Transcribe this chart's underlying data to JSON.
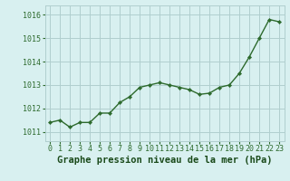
{
  "x": [
    0,
    1,
    2,
    3,
    4,
    5,
    6,
    7,
    8,
    9,
    10,
    11,
    12,
    13,
    14,
    15,
    16,
    17,
    18,
    19,
    20,
    21,
    22,
    23
  ],
  "y": [
    1011.4,
    1011.5,
    1011.2,
    1011.4,
    1011.4,
    1011.8,
    1011.8,
    1012.25,
    1012.5,
    1012.9,
    1013.0,
    1013.1,
    1013.0,
    1012.9,
    1012.8,
    1012.6,
    1012.65,
    1012.9,
    1013.0,
    1013.5,
    1014.2,
    1015.0,
    1015.8,
    1015.7
  ],
  "line_color": "#2d6a2d",
  "marker": "D",
  "marker_size": 2.2,
  "line_width": 1.0,
  "bg_color": "#d8f0f0",
  "grid_color": "#b0cece",
  "xlabel": "Graphe pression niveau de la mer (hPa)",
  "xlabel_fontsize": 7.5,
  "xlabel_color": "#1a4a1a",
  "ylabel_ticks": [
    1011,
    1012,
    1013,
    1014,
    1015,
    1016
  ],
  "ylim": [
    1010.6,
    1016.4
  ],
  "xlim": [
    -0.5,
    23.5
  ],
  "tick_fontsize": 6.0,
  "tick_color": "#2d6a2d"
}
